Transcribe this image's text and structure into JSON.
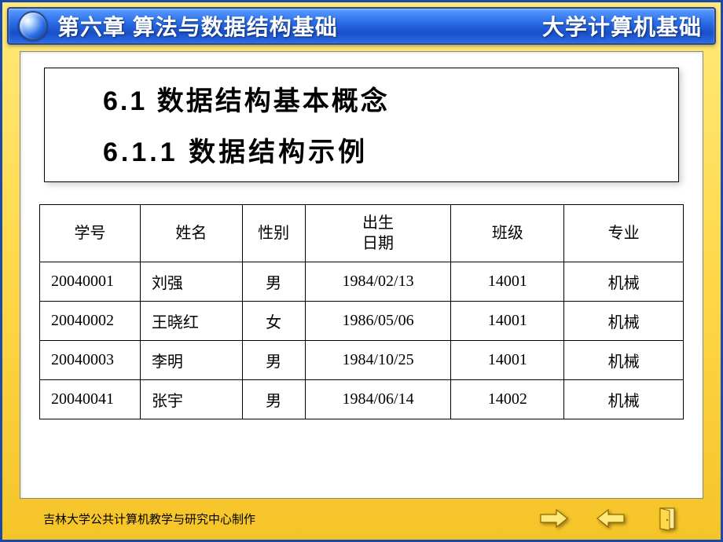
{
  "header": {
    "left": "第六章 算法与数据结构基础",
    "right": "大学计算机基础"
  },
  "titles": {
    "section": "6.1 数据结构基本概念",
    "subsection": "6.1.1 数据结构示例"
  },
  "table": {
    "columns": [
      {
        "key": "id",
        "label": "学号",
        "class": "col-id",
        "align": "left"
      },
      {
        "key": "name",
        "label": "姓名",
        "class": "col-name",
        "align": "left"
      },
      {
        "key": "gender",
        "label": "性别",
        "class": "col-gender",
        "align": "center"
      },
      {
        "key": "birth",
        "label": "出生\n日期",
        "class": "col-birth",
        "align": "center"
      },
      {
        "key": "class",
        "label": "班级",
        "class": "col-class",
        "align": "center"
      },
      {
        "key": "major",
        "label": "专业",
        "class": "col-major",
        "align": "center"
      }
    ],
    "rows": [
      {
        "id": "20040001",
        "name": "刘强",
        "gender": "男",
        "birth": "1984/02/13",
        "class": "14001",
        "major": "机械"
      },
      {
        "id": "20040002",
        "name": "王晓红",
        "gender": "女",
        "birth": "1986/05/06",
        "class": "14001",
        "major": "机械"
      },
      {
        "id": "20040003",
        "name": "李明",
        "gender": "男",
        "birth": "1984/10/25",
        "class": "14001",
        "major": "机械"
      },
      {
        "id": "20040041",
        "name": "张宇",
        "gender": "男",
        "birth": "1984/06/14",
        "class": "14002",
        "major": "机械"
      }
    ]
  },
  "footer": {
    "credit": "吉林大学公共计算机教学与研究中心制作"
  },
  "colors": {
    "arrow_fill": "#ffd84a",
    "arrow_stroke": "#8a6a00",
    "exit_fill": "#ffd84a",
    "exit_stroke": "#8a6a00",
    "header_gradient_top": "#5a9cff",
    "header_gradient_bottom": "#1a4fc8",
    "frame_gradient_top": "#ffe97a",
    "frame_gradient_bottom": "#f5c428"
  }
}
